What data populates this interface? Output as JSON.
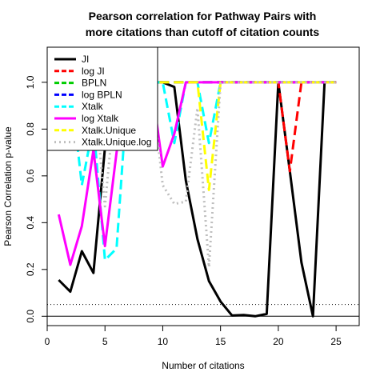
{
  "chart_data": {
    "type": "line",
    "title_line1": "Pearson correlation for Pathway Pairs with",
    "title_line2": "more citations than cutoff of citation counts",
    "xlabel": "Number of citations",
    "ylabel": "Pearson Correlation p-value",
    "xlim": [
      0,
      27
    ],
    "ylim": [
      -0.04,
      1.15
    ],
    "x_ticks": [
      0,
      5,
      10,
      15,
      20,
      25
    ],
    "x_tick_labels": [
      "0",
      "5",
      "10",
      "15",
      "20",
      "25"
    ],
    "y_ticks": [
      0.0,
      0.2,
      0.4,
      0.6,
      0.8,
      1.0
    ],
    "y_tick_labels": [
      "0.0",
      "0.2",
      "0.4",
      "0.6",
      "0.8",
      "1.0"
    ],
    "reference_lines": [
      {
        "y": 0.05,
        "style": "dotted",
        "color": "#000000"
      },
      {
        "y": 0.0,
        "style": "solid",
        "color": "#000000"
      }
    ],
    "legend_position": "top-left",
    "series": [
      {
        "name": "JI",
        "color": "#000000",
        "dash": "solid",
        "x": [
          1,
          2,
          3,
          4,
          5,
          6,
          7,
          8,
          9,
          10,
          11,
          12,
          13,
          14,
          15,
          16,
          17,
          18,
          19,
          20,
          21,
          22,
          23,
          24,
          25
        ],
        "y": [
          0.155,
          0.105,
          0.278,
          0.185,
          0.72,
          0.85,
          0.97,
          1.0,
          1.0,
          1.0,
          0.98,
          0.58,
          0.33,
          0.15,
          0.063,
          0.003,
          0.005,
          0.0,
          0.01,
          1.0,
          0.62,
          0.23,
          0.0,
          1.0,
          1.0
        ]
      },
      {
        "name": "log JI",
        "color": "#ff0000",
        "dash": "dashed",
        "x": [
          1,
          2,
          3,
          4,
          5,
          6,
          7,
          8,
          9,
          10,
          11,
          12,
          13,
          14,
          15,
          16,
          17,
          18,
          19,
          20,
          21,
          22,
          23,
          24,
          25
        ],
        "y": [
          1.0,
          1.0,
          1.0,
          1.0,
          1.0,
          1.0,
          1.0,
          1.0,
          1.0,
          1.0,
          1.0,
          1.0,
          1.0,
          1.0,
          1.0,
          1.0,
          1.0,
          1.0,
          1.0,
          1.0,
          0.62,
          1.0,
          1.0,
          1.0,
          1.0
        ]
      },
      {
        "name": "BPLN",
        "color": "#00cd00",
        "dash": "dashed",
        "x": [
          1,
          2,
          3,
          4,
          5,
          6,
          7,
          8,
          9,
          10,
          11,
          12,
          13,
          14,
          15,
          16,
          17,
          18,
          19,
          20,
          21,
          22,
          23,
          24,
          25
        ],
        "y": [
          1.0,
          1.0,
          1.0,
          1.0,
          1.0,
          1.0,
          1.0,
          1.0,
          1.0,
          1.0,
          1.0,
          1.0,
          1.0,
          1.0,
          1.0,
          1.0,
          1.0,
          1.0,
          1.0,
          1.0,
          1.0,
          1.0,
          1.0,
          1.0,
          1.0
        ]
      },
      {
        "name": "log BPLN",
        "color": "#0000ff",
        "dash": "dashed",
        "x": [
          1,
          2,
          3,
          4,
          5,
          6,
          7,
          8,
          9,
          10,
          11,
          12,
          13,
          14,
          15,
          16,
          17,
          18,
          19,
          20,
          21,
          22,
          23,
          24,
          25
        ],
        "y": [
          1.0,
          1.0,
          1.0,
          1.0,
          1.0,
          1.0,
          1.0,
          1.0,
          1.0,
          1.0,
          1.0,
          1.0,
          1.0,
          1.0,
          1.0,
          1.0,
          1.0,
          1.0,
          1.0,
          1.0,
          1.0,
          1.0,
          1.0,
          1.0,
          1.0
        ]
      },
      {
        "name": "Xtalk",
        "color": "#00ffff",
        "dash": "dashed",
        "x": [
          1,
          2,
          3,
          4,
          5,
          6,
          7,
          8,
          9,
          10,
          11,
          12,
          13,
          14,
          15,
          16,
          17,
          18,
          19,
          20,
          21,
          22,
          23,
          24,
          25
        ],
        "y": [
          1.0,
          1.0,
          0.56,
          0.82,
          0.24,
          0.29,
          1.0,
          1.0,
          1.0,
          1.0,
          0.74,
          1.0,
          1.0,
          0.74,
          1.0,
          1.0,
          1.0,
          1.0,
          1.0,
          1.0,
          1.0,
          1.0,
          1.0,
          1.0,
          1.0
        ]
      },
      {
        "name": "log Xtalk",
        "color": "#ff00ff",
        "dash": "solid",
        "x": [
          1,
          2,
          3,
          4,
          5,
          6,
          7,
          8,
          9,
          10,
          11,
          12,
          13,
          14,
          15,
          16,
          17,
          18,
          19,
          20,
          21,
          22,
          23,
          24,
          25
        ],
        "y": [
          0.435,
          0.22,
          0.385,
          0.71,
          0.3,
          0.7,
          1.0,
          1.0,
          1.0,
          0.64,
          0.78,
          1.0,
          1.0,
          1.0,
          1.0,
          1.0,
          1.0,
          1.0,
          1.0,
          1.0,
          1.0,
          1.0,
          1.0,
          1.0,
          1.0
        ]
      },
      {
        "name": "Xtalk.Unique",
        "color": "#ffff00",
        "dash": "dashed",
        "x": [
          1,
          2,
          3,
          4,
          5,
          6,
          7,
          8,
          9,
          10,
          11,
          12,
          13,
          14,
          15,
          16,
          17,
          18,
          19,
          20,
          21,
          22,
          23,
          24,
          25
        ],
        "y": [
          1.0,
          1.0,
          1.0,
          1.0,
          1.0,
          1.0,
          1.0,
          1.0,
          1.0,
          1.0,
          1.0,
          1.0,
          1.0,
          0.54,
          1.0,
          1.0,
          1.0,
          1.0,
          1.0,
          1.0,
          1.0,
          1.0,
          1.0,
          1.0,
          1.0
        ]
      },
      {
        "name": "Xtalk.Unique.log",
        "color": "#bebebe",
        "dash": "dotted",
        "x": [
          1,
          2,
          3,
          4,
          5,
          6,
          7,
          8,
          9,
          10,
          11,
          12,
          13,
          14,
          15,
          16,
          17,
          18,
          19,
          20,
          21,
          22,
          23,
          24,
          25
        ],
        "y": [
          1.0,
          1.0,
          1.0,
          1.0,
          0.47,
          1.0,
          1.0,
          1.0,
          1.0,
          0.56,
          0.48,
          0.49,
          0.89,
          0.21,
          1.0,
          1.0,
          1.0,
          1.0,
          1.0,
          1.0,
          1.0,
          1.0,
          1.0,
          1.0,
          1.0
        ]
      }
    ]
  }
}
